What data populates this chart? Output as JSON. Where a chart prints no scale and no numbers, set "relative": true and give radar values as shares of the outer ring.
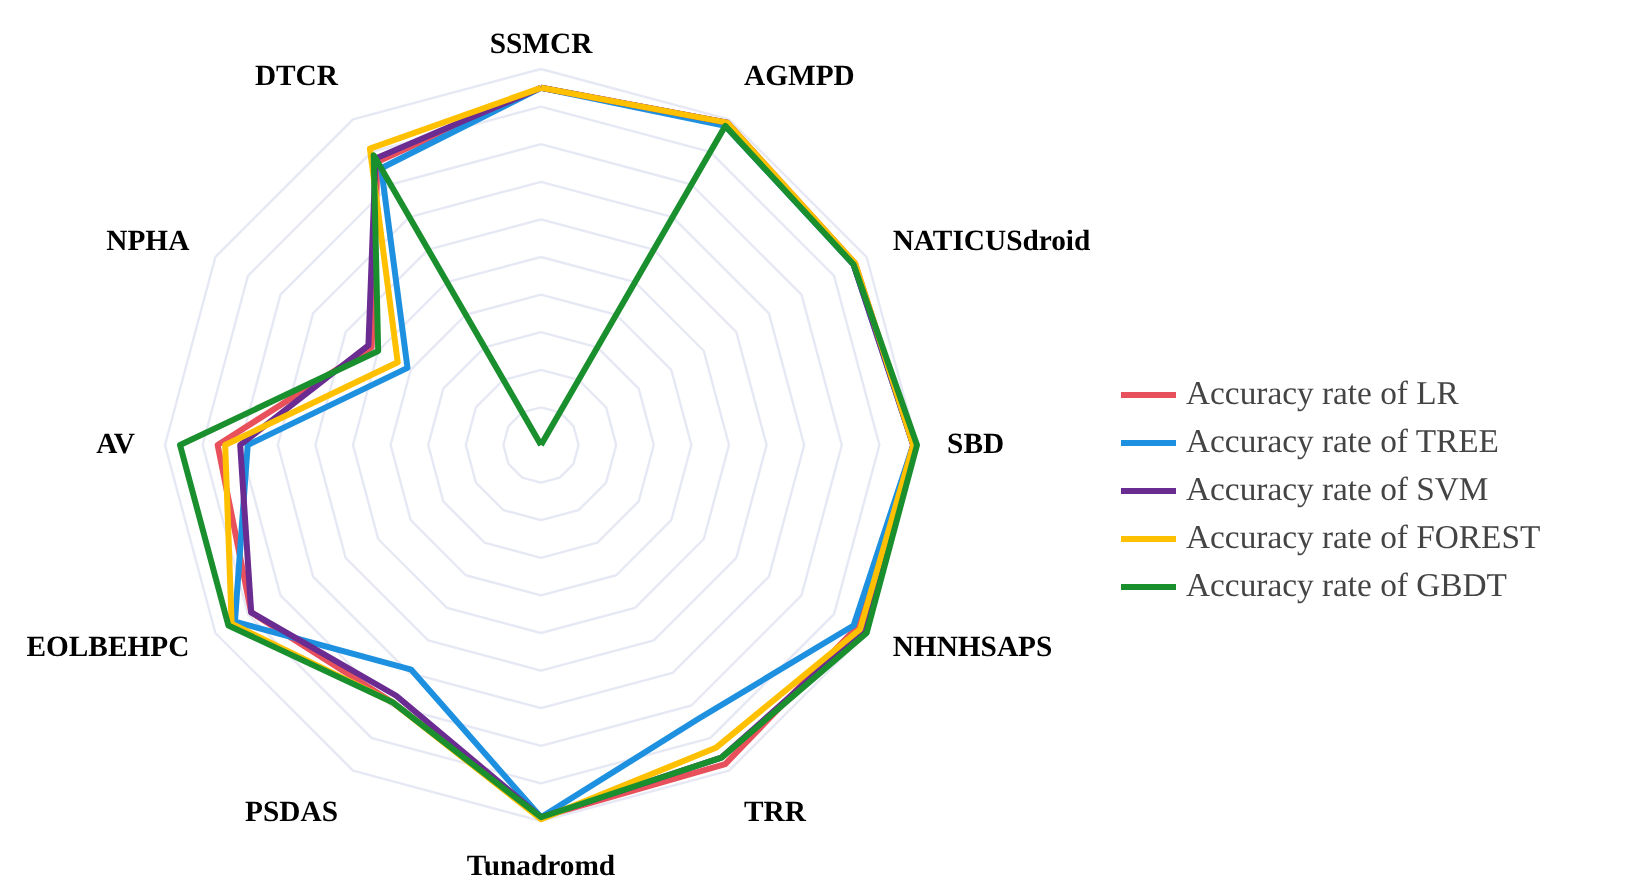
{
  "chart_data": {
    "type": "radar",
    "relative": true,
    "grid": true,
    "legend": "right",
    "line_style": "solid",
    "marker": "none",
    "categories": [
      "SSMCR",
      "AGMPD",
      "NATICUSdroid",
      "SBD",
      "NHNHSAPS",
      "TRR",
      "Tunadromd",
      "PSDAS",
      "EOLBEHPC",
      "AV",
      "NPHA",
      "DTCR"
    ],
    "series": [
      {
        "name": "Accuracy rate of LR",
        "color": "#e8505b",
        "values": [
          0.95,
          0.99,
          0.965,
          0.99,
          0.97,
          0.98,
          0.99,
          0.79,
          0.89,
          0.86,
          0.52,
          0.87
        ]
      },
      {
        "name": "Accuracy rate of TREE",
        "color": "#1e90e0",
        "values": [
          0.95,
          0.98,
          0.96,
          0.99,
          0.96,
          0.84,
          0.99,
          0.69,
          0.94,
          0.78,
          0.41,
          0.85
        ]
      },
      {
        "name": "Accuracy rate of SVM",
        "color": "#6a2c91",
        "values": [
          0.95,
          0.99,
          0.96,
          0.99,
          0.99,
          0.96,
          0.99,
          0.77,
          0.89,
          0.8,
          0.53,
          0.88
        ]
      },
      {
        "name": "Accuracy rate of FOREST",
        "color": "#ffc000",
        "values": [
          0.95,
          0.99,
          0.965,
          0.99,
          0.98,
          0.93,
          0.995,
          0.79,
          0.95,
          0.84,
          0.44,
          0.91
        ]
      },
      {
        "name": "Accuracy rate of GBDT",
        "color": "#1a8f2e",
        "values": [
          0.0,
          0.98,
          0.96,
          1.0,
          1.0,
          0.96,
          0.99,
          0.79,
          0.96,
          0.96,
          0.5,
          0.89
        ]
      }
    ]
  }
}
